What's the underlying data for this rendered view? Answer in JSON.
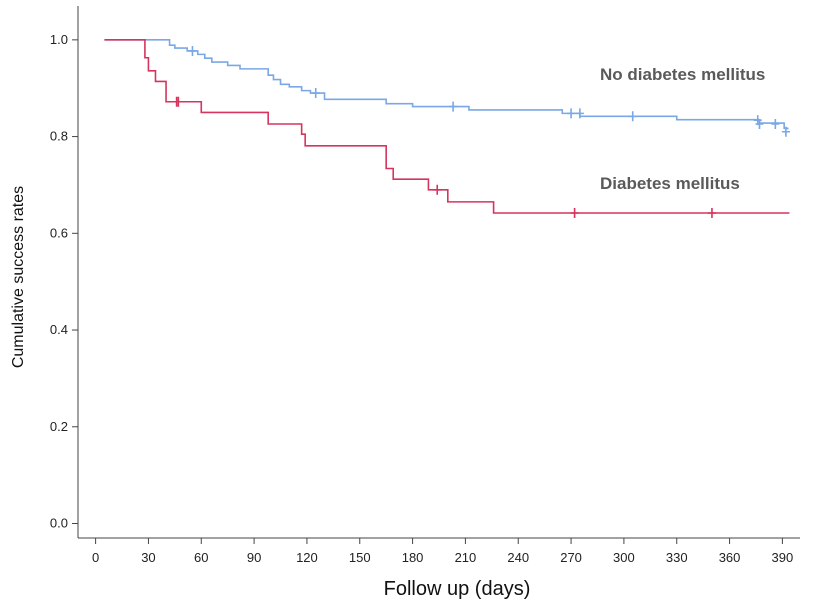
{
  "chart_data": {
    "type": "line",
    "step": true,
    "xlabel": "Follow up (days)",
    "ylabel": "Cumulative success rates",
    "xlim": [
      -10,
      400
    ],
    "ylim": [
      -0.03,
      1.07
    ],
    "x_ticks": [
      0,
      30,
      60,
      90,
      120,
      150,
      180,
      210,
      240,
      270,
      300,
      330,
      360,
      390
    ],
    "y_ticks": [
      0.0,
      0.2,
      0.4,
      0.6,
      0.8,
      1.0
    ],
    "grid": false,
    "colors": {
      "no_diabetes": "#7aa7e6",
      "diabetes": "#d6335e",
      "axis": "#444444"
    },
    "series": [
      {
        "name": "No diabetes mellitus",
        "steps": [
          [
            5,
            1.0
          ],
          [
            42,
            0.989
          ],
          [
            45,
            0.983
          ],
          [
            52,
            0.977
          ],
          [
            58,
            0.97
          ],
          [
            62,
            0.962
          ],
          [
            66,
            0.954
          ],
          [
            75,
            0.947
          ],
          [
            82,
            0.94
          ],
          [
            98,
            0.927
          ],
          [
            101,
            0.918
          ],
          [
            105,
            0.908
          ],
          [
            110,
            0.903
          ],
          [
            117,
            0.895
          ],
          [
            122,
            0.89
          ],
          [
            130,
            0.877
          ],
          [
            165,
            0.868
          ],
          [
            180,
            0.862
          ],
          [
            212,
            0.855
          ],
          [
            265,
            0.848
          ],
          [
            275,
            0.842
          ],
          [
            330,
            0.835
          ],
          [
            377,
            0.828
          ],
          [
            391,
            0.817
          ],
          [
            393,
            0.815
          ]
        ],
        "censored": [
          [
            55,
            0.977
          ],
          [
            125,
            0.89
          ],
          [
            203,
            0.862
          ],
          [
            270,
            0.848
          ],
          [
            275,
            0.848
          ],
          [
            305,
            0.842
          ],
          [
            376,
            0.834
          ],
          [
            377,
            0.826
          ],
          [
            386,
            0.826
          ],
          [
            392,
            0.81
          ]
        ]
      },
      {
        "name": "Diabetes mellitus",
        "steps": [
          [
            5,
            1.0
          ],
          [
            28,
            0.963
          ],
          [
            30,
            0.936
          ],
          [
            34,
            0.914
          ],
          [
            40,
            0.872
          ],
          [
            60,
            0.85
          ],
          [
            98,
            0.826
          ],
          [
            117,
            0.805
          ],
          [
            119,
            0.781
          ],
          [
            165,
            0.734
          ],
          [
            169,
            0.712
          ],
          [
            189,
            0.69
          ],
          [
            200,
            0.665
          ],
          [
            226,
            0.642
          ],
          [
            394,
            0.642
          ]
        ],
        "censored": [
          [
            46,
            0.872
          ],
          [
            47,
            0.872
          ],
          [
            194,
            0.69
          ],
          [
            272,
            0.642
          ],
          [
            350,
            0.642
          ]
        ]
      }
    ]
  }
}
